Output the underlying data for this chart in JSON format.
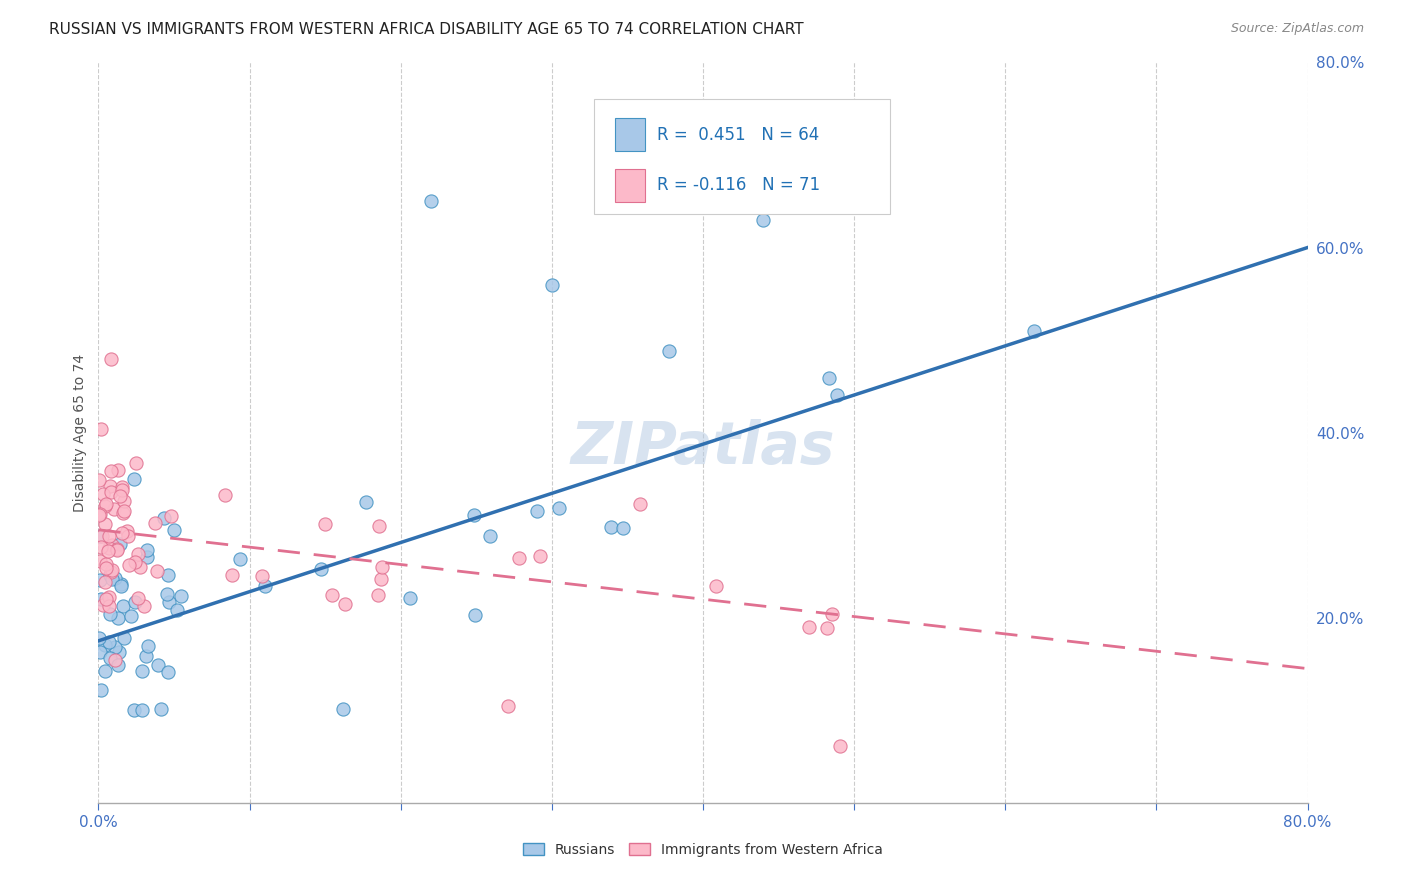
{
  "title": "RUSSIAN VS IMMIGRANTS FROM WESTERN AFRICA DISABILITY AGE 65 TO 74 CORRELATION CHART",
  "source": "Source: ZipAtlas.com",
  "ylabel": "Disability Age 65 to 74",
  "xlim": [
    0.0,
    0.8
  ],
  "ylim": [
    0.0,
    0.8
  ],
  "russian_color": "#a8c8e8",
  "russian_edge_color": "#4393c3",
  "immigrant_color": "#fcb9c9",
  "immigrant_edge_color": "#e07090",
  "russian_line_color": "#3070b0",
  "immigrant_line_color": "#e07090",
  "watermark": "ZIPatlas",
  "background_color": "#ffffff",
  "grid_color": "#cccccc",
  "title_fontsize": 11,
  "axis_label_fontsize": 10,
  "tick_fontsize": 11,
  "legend_fontsize": 12,
  "watermark_fontsize": 42,
  "source_fontsize": 9,
  "rus_line_y0": 0.175,
  "rus_line_y1": 0.6,
  "imm_line_y0": 0.295,
  "imm_line_y1": 0.145
}
